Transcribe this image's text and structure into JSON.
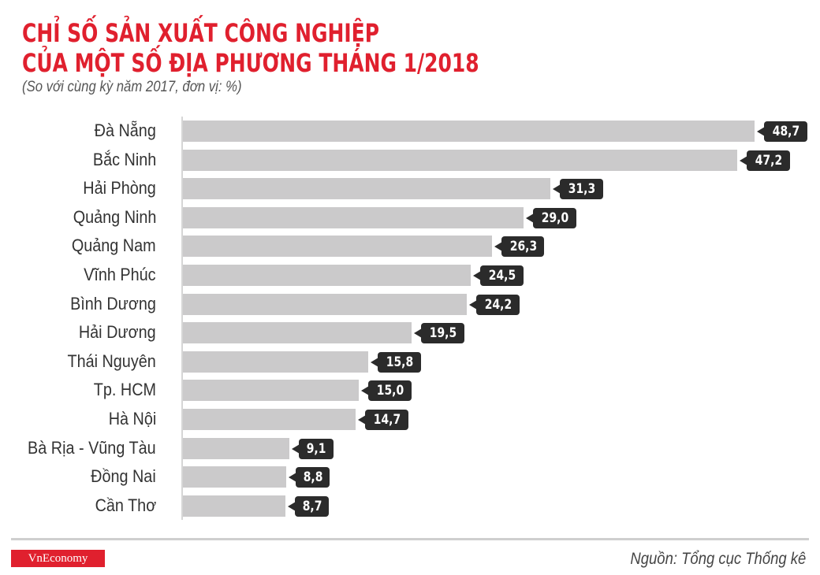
{
  "header": {
    "title_line1": "CHỈ SỐ SẢN XUẤT CÔNG NGHIỆP",
    "title_line2": "CỦA MỘT SỐ ĐỊA PHƯƠNG THÁNG 1/2018",
    "subtitle": "(So với cùng kỳ năm 2017, đơn vị: %)"
  },
  "footer": {
    "logo": "VnEconomy",
    "source": "Nguồn: Tổng cục Thống kê"
  },
  "colors": {
    "title": "#e0202e",
    "bar": "#cbcacb",
    "badge": "#2b2b2b",
    "logo_bg": "#e0202e"
  },
  "chart_data": {
    "type": "bar",
    "orientation": "horizontal",
    "title": "CHỈ SỐ SẢN XUẤT CÔNG NGHIỆP CỦA MỘT SỐ ĐỊA PHƯƠNG THÁNG 1/2018",
    "subtitle": "(So với cùng kỳ năm 2017, đơn vị: %)",
    "xlabel": "",
    "ylabel": "",
    "categories": [
      "Đà Nẵng",
      "Bắc Ninh",
      "Hải Phòng",
      "Quảng Ninh",
      "Quảng Nam",
      "Vĩnh Phúc",
      "Bình Dương",
      "Hải Dương",
      "Thái Nguyên",
      "Tp. HCM",
      "Hà Nội",
      "Bà Rịa - Vũng Tàu",
      "Đồng Nai",
      "Cần Thơ"
    ],
    "values": [
      48.7,
      47.2,
      31.3,
      29.0,
      26.3,
      24.5,
      24.2,
      19.5,
      15.8,
      15.0,
      14.7,
      9.1,
      8.8,
      8.7
    ],
    "value_labels": [
      "48,7",
      "47,2",
      "31,3",
      "29,0",
      "26,3",
      "24,5",
      "24,2",
      "19,5",
      "15,8",
      "15,0",
      "14,7",
      "9,1",
      "8,8",
      "8,7"
    ],
    "xlim": [
      0,
      50
    ],
    "grid": false,
    "legend": null,
    "source": "Nguồn: Tổng cục Thống kê"
  }
}
